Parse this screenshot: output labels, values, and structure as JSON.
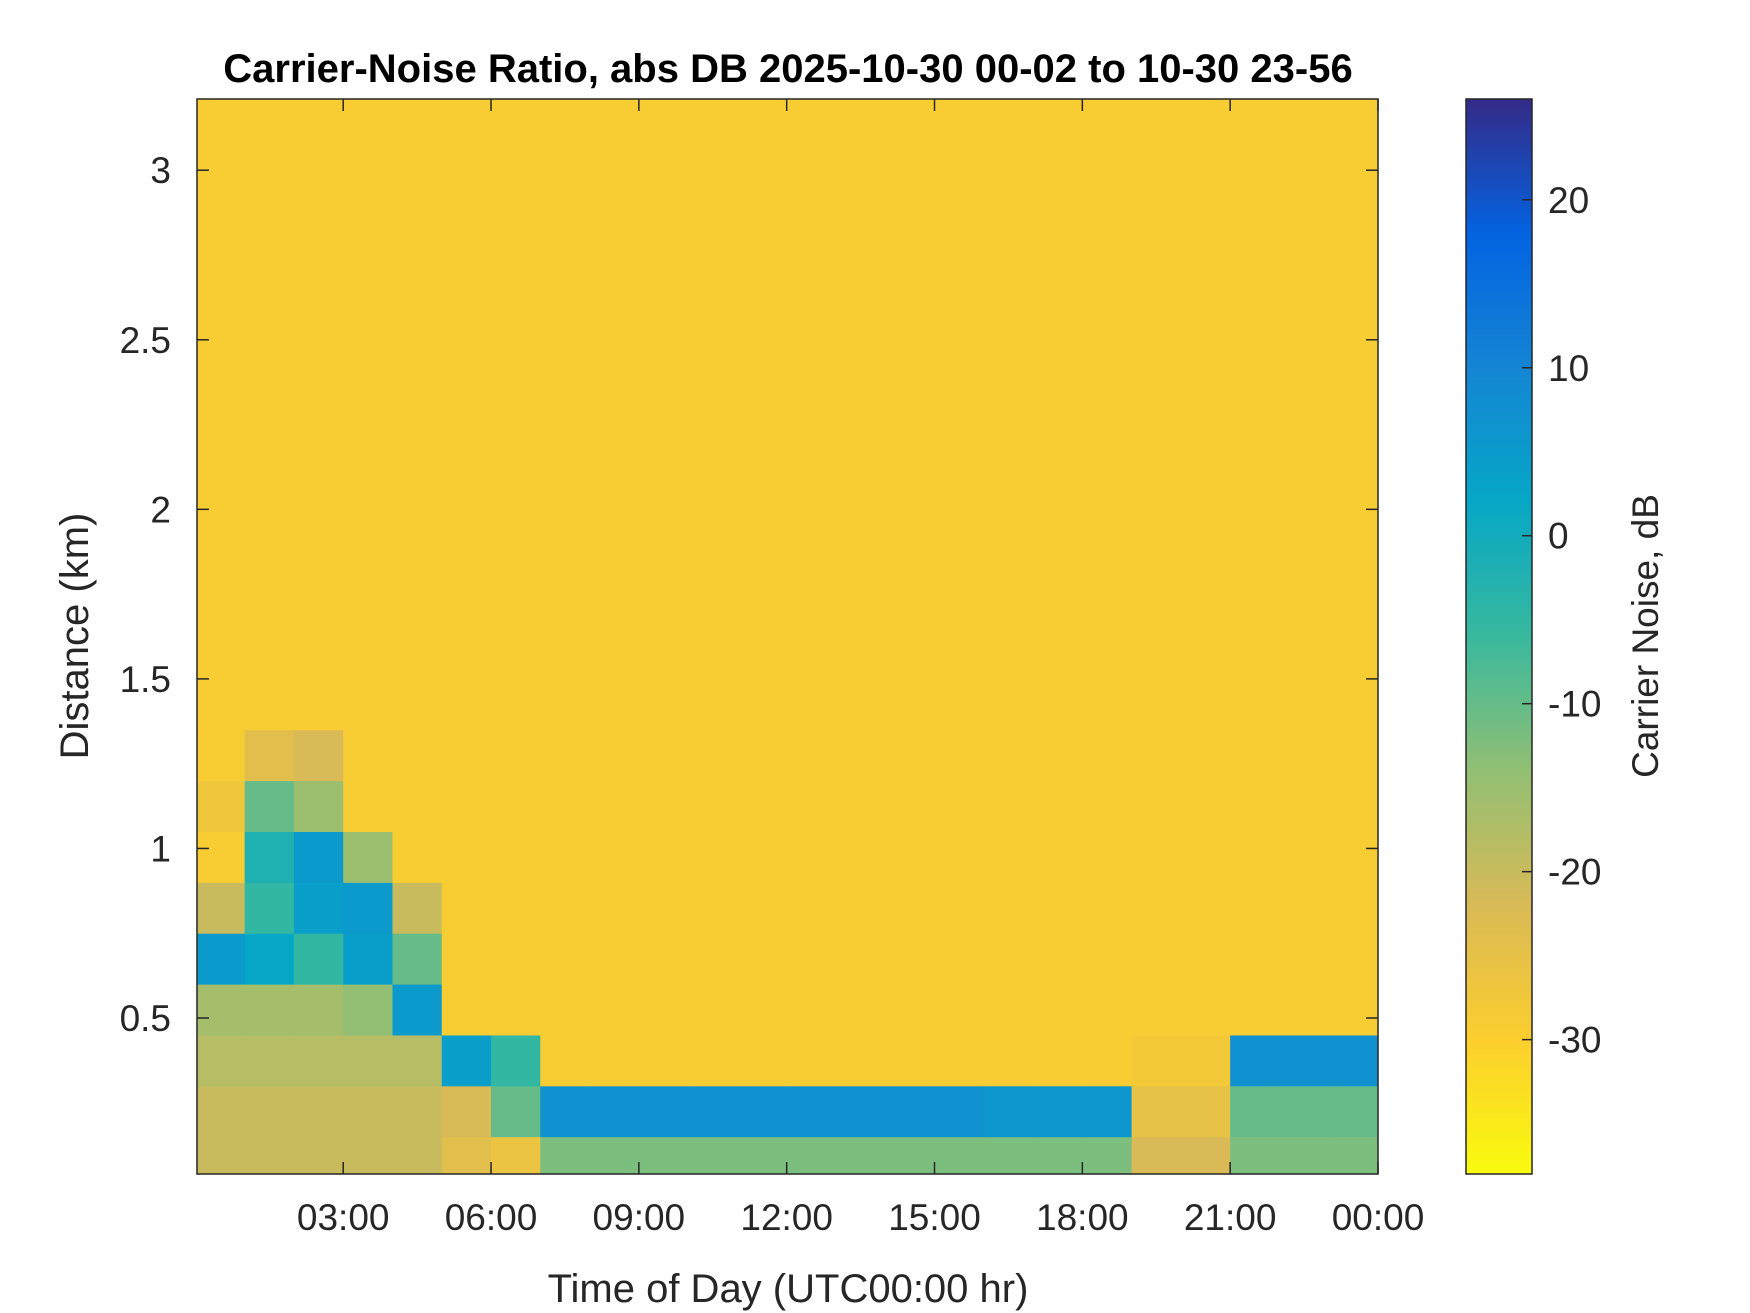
{
  "chart_data": {
    "type": "heatmap",
    "title": "Carrier-Noise Ratio, abs DB 2025-10-30 00-02 to 10-30 23-56",
    "xlabel": "Time of Day (UTC00:00 hr)",
    "ylabel": "Distance (km)",
    "colorbar_label": "Carrier Noise, dB",
    "x": [
      0.033,
      1,
      2,
      3,
      4,
      5,
      6,
      7,
      8,
      9,
      10,
      11,
      12,
      13,
      14,
      15,
      16,
      17,
      18,
      19,
      20,
      21,
      22,
      23,
      24
    ],
    "y": [
      0.04,
      0.15,
      0.3,
      0.45,
      0.6,
      0.75,
      0.9,
      1.05,
      1.2,
      1.35,
      1.5,
      2,
      2.5,
      3,
      3.21
    ],
    "values": [
      [
        -20,
        -20,
        -20,
        -20,
        -20,
        -24,
        -26,
        -12,
        -12,
        -12,
        -12,
        -12,
        -12,
        -12,
        -12,
        -12,
        -12,
        -12,
        -12,
        -22,
        -22,
        -12,
        -12,
        -12
      ],
      [
        -20,
        -20,
        -20,
        -20,
        -20,
        -22,
        -10,
        7,
        7,
        7,
        7,
        7,
        7,
        7,
        7,
        7,
        6,
        6,
        6,
        -25,
        -25,
        -10,
        -10,
        -10
      ],
      [
        -18,
        -18,
        -18,
        -18,
        -18,
        4,
        -5,
        -29,
        -29,
        -29,
        -29,
        -29,
        -29,
        -29,
        -29,
        -29,
        -29,
        -29,
        -29,
        -28,
        -28,
        7,
        7,
        7
      ],
      [
        -16,
        -16,
        -16,
        -14,
        5,
        -29,
        -29,
        -29,
        -29,
        -29,
        -29,
        -29,
        -29,
        -29,
        -29,
        -29,
        -29,
        -29,
        -29,
        -29,
        -29,
        -29,
        -29,
        -29
      ],
      [
        5,
        2,
        -5,
        4,
        -10,
        -29,
        -29,
        -29,
        -29,
        -29,
        -29,
        -29,
        -29,
        -29,
        -29,
        -29,
        -29,
        -29,
        -29,
        -29,
        -29,
        -29,
        -29,
        -29
      ],
      [
        -20,
        -5,
        4,
        5,
        -20,
        -29,
        -29,
        -29,
        -29,
        -29,
        -29,
        -29,
        -29,
        -29,
        -29,
        -29,
        -29,
        -29,
        -29,
        -29,
        -29,
        -29,
        -29,
        -29
      ],
      [
        -29,
        -2,
        5,
        -15,
        -29,
        -29,
        -29,
        -29,
        -29,
        -29,
        -29,
        -29,
        -29,
        -29,
        -29,
        -29,
        -29,
        -29,
        -29,
        -29,
        -29,
        -29,
        -29,
        -29
      ],
      [
        -27,
        -10,
        -15,
        -29,
        -29,
        -29,
        -29,
        -29,
        -29,
        -29,
        -29,
        -29,
        -29,
        -29,
        -29,
        -29,
        -29,
        -29,
        -29,
        -29,
        -29,
        -29,
        -29,
        -29
      ],
      [
        -29,
        -24,
        -22,
        -29,
        -29,
        -29,
        -29,
        -29,
        -29,
        -29,
        -29,
        -29,
        -29,
        -29,
        -29,
        -29,
        -29,
        -29,
        -29,
        -29,
        -29,
        -29,
        -29,
        -29
      ],
      [
        -29,
        -29,
        -29,
        -29,
        -29,
        -29,
        -29,
        -29,
        -29,
        -29,
        -29,
        -29,
        -29,
        -29,
        -29,
        -29,
        -29,
        -29,
        -29,
        -29,
        -29,
        -29,
        -29,
        -29
      ],
      [
        -29,
        -29,
        -29,
        -29,
        -29,
        -29,
        -29,
        -29,
        -29,
        -29,
        -29,
        -29,
        -29,
        -29,
        -29,
        -29,
        -29,
        -29,
        -29,
        -29,
        -29,
        -29,
        -29,
        -29
      ],
      [
        -29,
        -29,
        -29,
        -29,
        -29,
        -29,
        -29,
        -29,
        -29,
        -29,
        -29,
        -29,
        -29,
        -29,
        -29,
        -29,
        -29,
        -29,
        -29,
        -29,
        -29,
        -29,
        -29,
        -29
      ],
      [
        -29,
        -29,
        -29,
        -29,
        -29,
        -29,
        -29,
        -29,
        -29,
        -29,
        -29,
        -29,
        -29,
        -29,
        -29,
        -29,
        -29,
        -29,
        -29,
        -29,
        -29,
        -29,
        -29,
        -29
      ],
      [
        -29,
        -29,
        -29,
        -29,
        -29,
        -29,
        -29,
        -29,
        -29,
        -29,
        -29,
        -29,
        -29,
        -29,
        -29,
        -29,
        -29,
        -29,
        -29,
        -29,
        -29,
        -29,
        -29,
        -29
      ]
    ],
    "xlim": [
      0.033,
      24
    ],
    "ylim": [
      0.04,
      3.21
    ],
    "clim": [
      -38,
      26
    ],
    "xticks": [
      {
        "value": 3,
        "label": "03:00"
      },
      {
        "value": 6,
        "label": "06:00"
      },
      {
        "value": 9,
        "label": "09:00"
      },
      {
        "value": 12,
        "label": "12:00"
      },
      {
        "value": 15,
        "label": "15:00"
      },
      {
        "value": 18,
        "label": "18:00"
      },
      {
        "value": 21,
        "label": "21:00"
      },
      {
        "value": 24,
        "label": "00:00"
      }
    ],
    "yticks": [
      0.5,
      1,
      1.5,
      2,
      2.5,
      3
    ],
    "cticks": [
      -30,
      -20,
      -10,
      0,
      10,
      20
    ],
    "colormap": [
      "#f9fb0e",
      "#fcce2e",
      "#d9ba56",
      "#92bf73",
      "#38b99e",
      "#06a7c6",
      "#1485d4",
      "#0363e1",
      "#352a87"
    ]
  }
}
